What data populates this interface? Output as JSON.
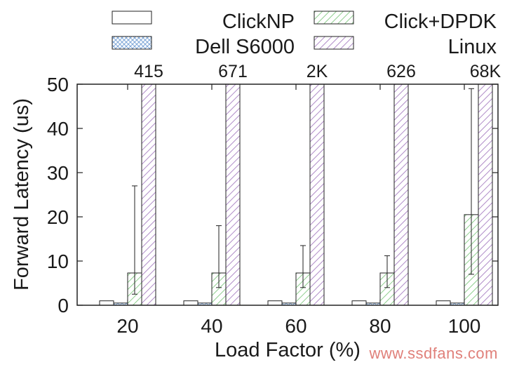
{
  "chart_data": {
    "type": "bar",
    "xlabel": "Load Factor (%)",
    "ylabel": "Forward Latency (us)",
    "ylim": [
      0,
      50
    ],
    "yticks": [
      0,
      10,
      20,
      30,
      40,
      50
    ],
    "categories": [
      "20",
      "40",
      "60",
      "80",
      "100"
    ],
    "legend_position": "top",
    "series": [
      {
        "name": "ClickNP",
        "pattern": "none",
        "color": "#000000",
        "values": [
          1.0,
          1.0,
          1.0,
          1.0,
          1.0
        ]
      },
      {
        "name": "Dell S6000",
        "pattern": "crosshatch",
        "color": "#7fa7d8",
        "values": [
          0.5,
          0.5,
          0.5,
          0.5,
          0.5
        ]
      },
      {
        "name": "Click+DPDK",
        "pattern": "hatch",
        "color": "#8fcf8f",
        "values": [
          7.3,
          7.3,
          7.3,
          7.3,
          20.5
        ],
        "error_low": [
          2.5,
          4.0,
          4.0,
          4.0,
          7.0
        ],
        "error_high": [
          27.0,
          18.0,
          13.5,
          11.2,
          49.0
        ]
      },
      {
        "name": "Linux",
        "pattern": "hatch",
        "color": "#b08cc8",
        "values": [
          415,
          671,
          2000,
          626,
          68000
        ],
        "value_labels": [
          "415",
          "671",
          "2K",
          "626",
          "68K"
        ]
      }
    ],
    "grid": false
  },
  "watermark": "www.ssdfans.com"
}
